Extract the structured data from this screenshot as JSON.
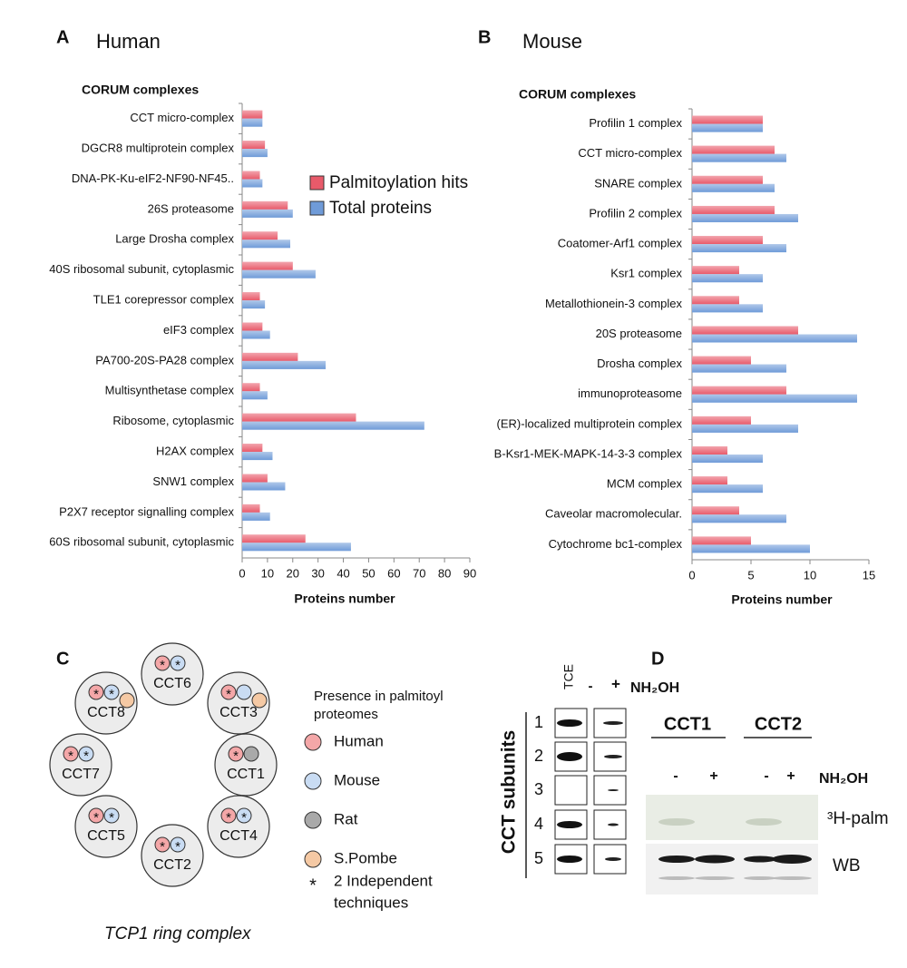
{
  "chart_data": [
    {
      "type": "hbar",
      "panel": "A",
      "title": "Human",
      "ylabel": "CORUM complexes",
      "xlabel": "Proteins number",
      "categories": [
        "CCT micro-complex",
        "DGCR8 multiprotein complex",
        "DNA-PK-Ku-eIF2-NF90-NF45..",
        "26S proteasome",
        "Large Drosha complex",
        "40S ribosomal subunit, cytoplasmic",
        "TLE1 corepressor complex",
        "eIF3 complex",
        "PA700-20S-PA28 complex",
        "Multisynthetase complex",
        "Ribosome, cytoplasmic",
        "H2AX complex",
        "SNW1 complex",
        "P2X7 receptor signalling complex",
        "60S ribosomal subunit, cytoplasmic"
      ],
      "series": [
        {
          "name": "Palmitoylation hits",
          "color": "#e85a6a",
          "values": [
            8,
            9,
            7,
            18,
            14,
            20,
            7,
            8,
            22,
            7,
            45,
            8,
            10,
            7,
            25
          ]
        },
        {
          "name": "Total proteins",
          "color": "#6f9bd8",
          "values": [
            8,
            10,
            8,
            20,
            19,
            29,
            9,
            11,
            33,
            10,
            72,
            12,
            17,
            11,
            43
          ]
        }
      ],
      "xlim": [
        0,
        90
      ],
      "xticks": [
        0,
        10,
        20,
        30,
        40,
        50,
        60,
        70,
        80,
        90
      ],
      "legend": "right"
    },
    {
      "type": "hbar",
      "panel": "B",
      "title": "Mouse",
      "ylabel": "CORUM complexes",
      "xlabel": "Proteins number",
      "categories": [
        "Profilin 1 complex",
        "CCT micro-complex",
        "SNARE complex",
        "Profilin 2 complex",
        "Coatomer-Arf1 complex",
        "Ksr1 complex",
        "Metallothionein-3 complex",
        "20S proteasome",
        "Drosha complex",
        "immunoproteasome",
        "(ER)-localized multiprotein complex",
        "B-Ksr1-MEK-MAPK-14-3-3 complex",
        "MCM complex",
        "Caveolar macromolecular.",
        "Cytochrome bc1-complex"
      ],
      "series": [
        {
          "color": "#e85a6a",
          "values": [
            6,
            7,
            6,
            7,
            6,
            4,
            4,
            9,
            5,
            8,
            5,
            3,
            3,
            4,
            5
          ]
        },
        {
          "color": "#6f9bd8",
          "values": [
            6,
            8,
            7,
            9,
            8,
            6,
            6,
            14,
            8,
            14,
            9,
            6,
            6,
            8,
            10
          ]
        }
      ],
      "xlim": [
        0,
        15
      ],
      "xticks": [
        0,
        5,
        10,
        15
      ]
    }
  ],
  "panel_c": {
    "panel": "C",
    "nodes": [
      "CCT6",
      "CCT3",
      "CCT1",
      "CCT4",
      "CCT2",
      "CCT5",
      "CCT7",
      "CCT8"
    ],
    "legend_title": [
      "Presence in palmitoyl",
      "proteomes"
    ],
    "species": [
      "Human",
      "Mouse",
      "Rat",
      "S.Pombe"
    ],
    "star": "*",
    "note": [
      "2 Independent",
      "techniques"
    ],
    "caption": "TCP1 ring complex"
  },
  "panel_d": {
    "panel": "D",
    "lane_tce": "TCE",
    "minus": "-",
    "plus": "+",
    "reagent": "NH₂OH",
    "axis_label": "CCT subunits",
    "rows": [
      "1",
      "2",
      "3",
      "4",
      "5"
    ],
    "groups": [
      "CCT1",
      "CCT2"
    ],
    "palm_label": "³H-palm",
    "wb_label": "WB"
  }
}
